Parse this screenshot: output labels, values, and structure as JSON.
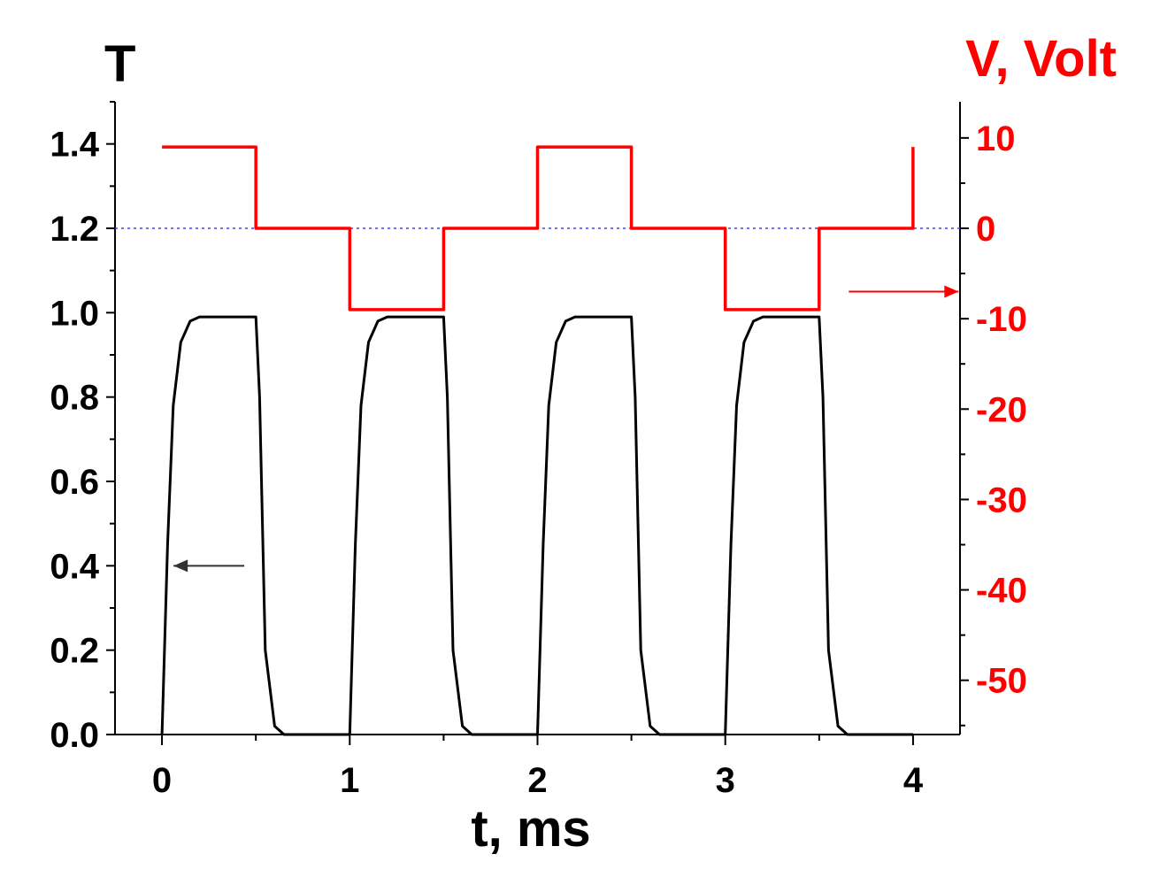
{
  "chart_data": {
    "type": "line",
    "xlabel": "t, ms",
    "ylabel_left": "T",
    "ylabel_right": "V, Volt",
    "xlim": [
      -0.25,
      4.25
    ],
    "ylim_left": [
      0,
      1.5
    ],
    "ylim_right": [
      -56,
      14
    ],
    "x_ticks": [
      "0",
      "1",
      "2",
      "3",
      "4"
    ],
    "y_left_ticks": [
      "0.0",
      "0.2",
      "0.4",
      "0.6",
      "0.8",
      "1.0",
      "1.2",
      "1.4"
    ],
    "y_right_ticks": [
      "10",
      "0",
      "-10",
      "-20",
      "-30",
      "-40",
      "-50"
    ],
    "zero_reference_line": {
      "axis": "right",
      "value": 0,
      "color": "#4040ff",
      "style": "dotted"
    },
    "colors": {
      "transmission": "#000000",
      "voltage": "#ff0000"
    },
    "series": [
      {
        "axis": "right",
        "color": "#ff0000",
        "points": [
          [
            0,
            9
          ],
          [
            0.5,
            9
          ],
          [
            0.5,
            0
          ],
          [
            1,
            0
          ],
          [
            1,
            -9
          ],
          [
            1.5,
            -9
          ],
          [
            1.5,
            0
          ],
          [
            2,
            0
          ],
          [
            2,
            9
          ],
          [
            2.5,
            9
          ],
          [
            2.5,
            0
          ],
          [
            3,
            0
          ],
          [
            3,
            -9
          ],
          [
            3.5,
            -9
          ],
          [
            3.5,
            0
          ],
          [
            4,
            0
          ],
          [
            4,
            9
          ]
        ]
      },
      {
        "axis": "left",
        "color": "#000000",
        "points": [
          [
            0,
            0
          ],
          [
            0.03,
            0.45
          ],
          [
            0.06,
            0.78
          ],
          [
            0.1,
            0.93
          ],
          [
            0.15,
            0.98
          ],
          [
            0.2,
            0.99
          ],
          [
            0.5,
            0.99
          ],
          [
            0.52,
            0.8
          ],
          [
            0.55,
            0.2
          ],
          [
            0.6,
            0.02
          ],
          [
            0.65,
            0
          ],
          [
            1.0,
            0
          ],
          [
            1.03,
            0.45
          ],
          [
            1.06,
            0.78
          ],
          [
            1.1,
            0.93
          ],
          [
            1.15,
            0.98
          ],
          [
            1.2,
            0.99
          ],
          [
            1.5,
            0.99
          ],
          [
            1.52,
            0.8
          ],
          [
            1.55,
            0.2
          ],
          [
            1.6,
            0.02
          ],
          [
            1.65,
            0
          ],
          [
            2.0,
            0
          ],
          [
            2.03,
            0.45
          ],
          [
            2.06,
            0.78
          ],
          [
            2.1,
            0.93
          ],
          [
            2.15,
            0.98
          ],
          [
            2.2,
            0.99
          ],
          [
            2.5,
            0.99
          ],
          [
            2.52,
            0.8
          ],
          [
            2.55,
            0.2
          ],
          [
            2.6,
            0.02
          ],
          [
            2.65,
            0
          ],
          [
            3.0,
            0
          ],
          [
            3.03,
            0.45
          ],
          [
            3.06,
            0.78
          ],
          [
            3.1,
            0.93
          ],
          [
            3.15,
            0.98
          ],
          [
            3.2,
            0.99
          ],
          [
            3.5,
            0.99
          ],
          [
            3.52,
            0.8
          ],
          [
            3.55,
            0.2
          ],
          [
            3.6,
            0.02
          ],
          [
            3.65,
            0
          ],
          [
            4.0,
            0
          ]
        ]
      }
    ],
    "annotations": [
      {
        "type": "arrow",
        "direction": "left",
        "points_to_axis": "left",
        "near": [
          0.25,
          0.4
        ],
        "color": "#333333"
      },
      {
        "type": "arrow",
        "direction": "right",
        "points_to_axis": "right",
        "near": [
          3.95,
          -7
        ],
        "color": "#ff0000"
      }
    ]
  }
}
